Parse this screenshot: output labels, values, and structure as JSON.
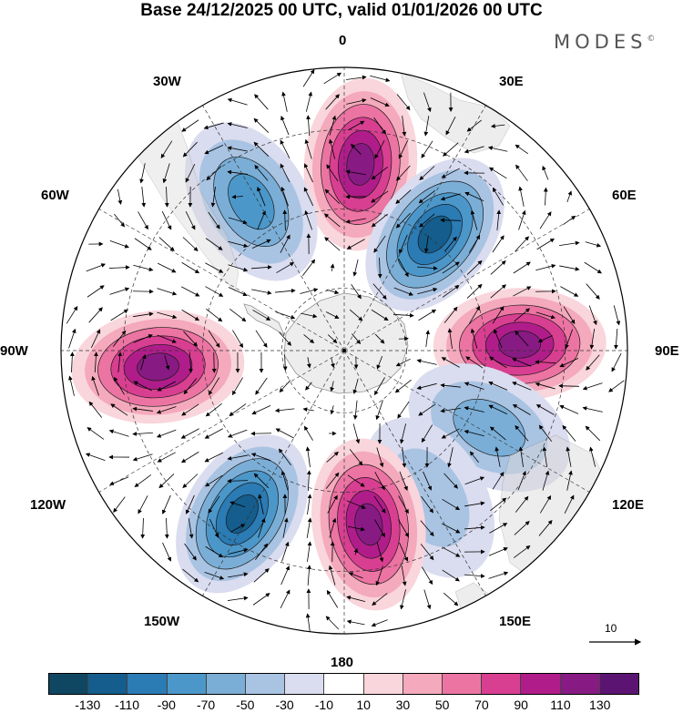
{
  "title": "Base 24/12/2025 00 UTC, valid 01/01/2026 00 UTC",
  "brand": "MODES",
  "brand_mark": "©",
  "longitude_labels": {
    "lon_0": "0",
    "lon_30e": "30E",
    "lon_60e": "60E",
    "lon_90e": "90E",
    "lon_120e": "120E",
    "lon_150e": "150E",
    "lon_180": "180",
    "lon_150w": "150W",
    "lon_120w": "120W",
    "lon_90w": "90W",
    "lon_60w": "60W",
    "lon_30w": "30W"
  },
  "vector_scale": {
    "label": "10"
  },
  "colorbar": {
    "colors": [
      "#0f4763",
      "#145d8c",
      "#2b7bb4",
      "#4c97c9",
      "#7aaed6",
      "#a9c3e2",
      "#dadcef",
      "#ffffff",
      "#f9d5dc",
      "#f4a9bc",
      "#ec74a2",
      "#d83f91",
      "#b01d8a",
      "#881b83",
      "#5c1473"
    ],
    "ticks": [
      "-130",
      "-110",
      "-90",
      "-70",
      "-50",
      "-30",
      "-10",
      "10",
      "30",
      "50",
      "70",
      "90",
      "110",
      "130"
    ]
  },
  "anomaly_centers": [
    {
      "lon_deg": 5,
      "lat_frac": 0.66,
      "value": 130
    },
    {
      "lon_deg": 38,
      "lat_frac": 0.52,
      "value": -130
    },
    {
      "lon_deg": 88,
      "lat_frac": 0.62,
      "value": 130
    },
    {
      "lon_deg": 118,
      "lat_frac": 0.58,
      "value": -70
    },
    {
      "lon_deg": 150,
      "lat_frac": 0.6,
      "value": -50
    },
    {
      "lon_deg": 172,
      "lat_frac": 0.62,
      "value": 130
    },
    {
      "lon_deg": 212,
      "lat_frac": 0.68,
      "value": -130
    },
    {
      "lon_deg": 265,
      "lat_frac": 0.66,
      "value": 130
    },
    {
      "lon_deg": 328,
      "lat_frac": 0.62,
      "value": -90
    }
  ]
}
